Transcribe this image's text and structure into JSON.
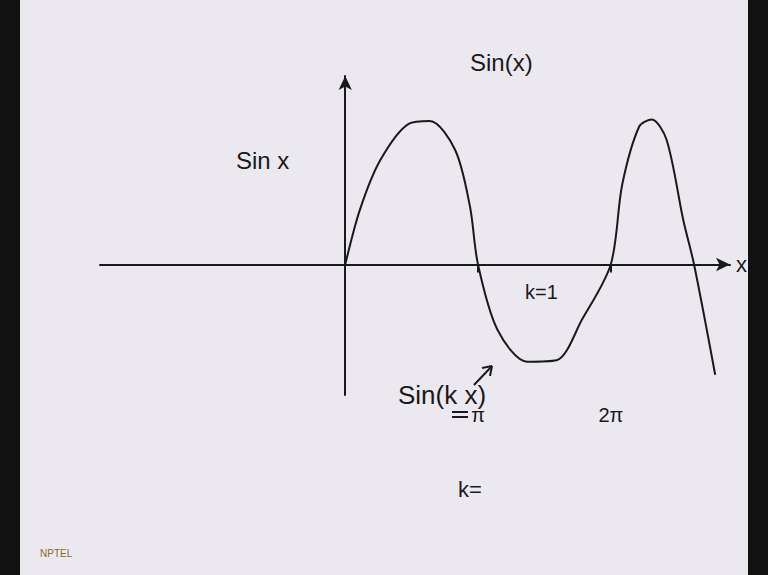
{
  "chart_data": {
    "type": "line",
    "title": "Sin(x)",
    "x_label": "x",
    "y_label": "Sin x",
    "x": [
      0,
      0.35,
      0.83,
      1.5,
      2.0,
      2.6,
      2.95,
      3.14,
      3.6,
      4.3,
      5.0,
      5.6,
      6.28,
      6.55,
      6.95,
      7.25,
      7.6,
      8.0,
      8.25,
      8.75
    ],
    "values": [
      0,
      0.38,
      0.72,
      0.97,
      0.99,
      0.79,
      0.4,
      0,
      -0.45,
      -0.67,
      -0.66,
      -0.38,
      0,
      0.55,
      0.95,
      1.0,
      0.86,
      0.3,
      0,
      -0.76
    ],
    "color": "#1a1a1a",
    "xlim": [
      -5.8,
      9.1
    ],
    "ylim": [
      -0.9,
      1.3
    ],
    "xticks": [
      {
        "value": 3.1416,
        "label": "π"
      },
      {
        "value": 6.2832,
        "label": "2π"
      }
    ],
    "yticks": [],
    "grid": false,
    "tick_labels": "x",
    "annotations": [
      "k=1",
      "Sin(k x)",
      "k=",
      "NPTEL"
    ]
  }
}
